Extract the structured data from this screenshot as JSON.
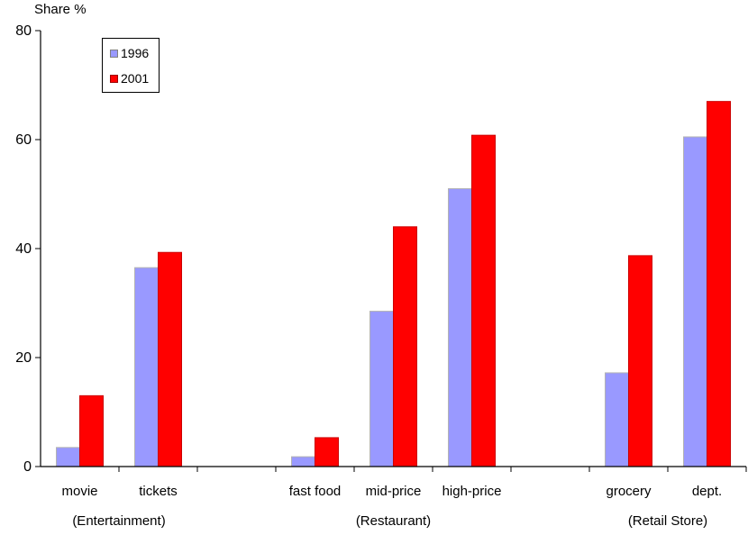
{
  "chart_data": {
    "type": "bar",
    "ylabel": "Share %",
    "ylim": [
      0,
      80
    ],
    "yticks": [
      0,
      20,
      40,
      60,
      80
    ],
    "categories": [
      "movie",
      "tickets",
      "",
      "fast food",
      "mid-price",
      "high-price",
      "",
      "grocery",
      "dept."
    ],
    "groups": [
      "(Entertainment)",
      "(Restaurant)",
      "(Retail Store)"
    ],
    "series": [
      {
        "name": "1996",
        "color": "#9999ff",
        "values": [
          3.5,
          36.5,
          null,
          1.8,
          28.5,
          51,
          null,
          17.2,
          60.5
        ]
      },
      {
        "name": "2001",
        "color": "#ff0000",
        "values": [
          13,
          39.3,
          null,
          5.3,
          44,
          60.8,
          null,
          38.7,
          67
        ]
      }
    ],
    "grid": false,
    "legend": "top-left"
  }
}
